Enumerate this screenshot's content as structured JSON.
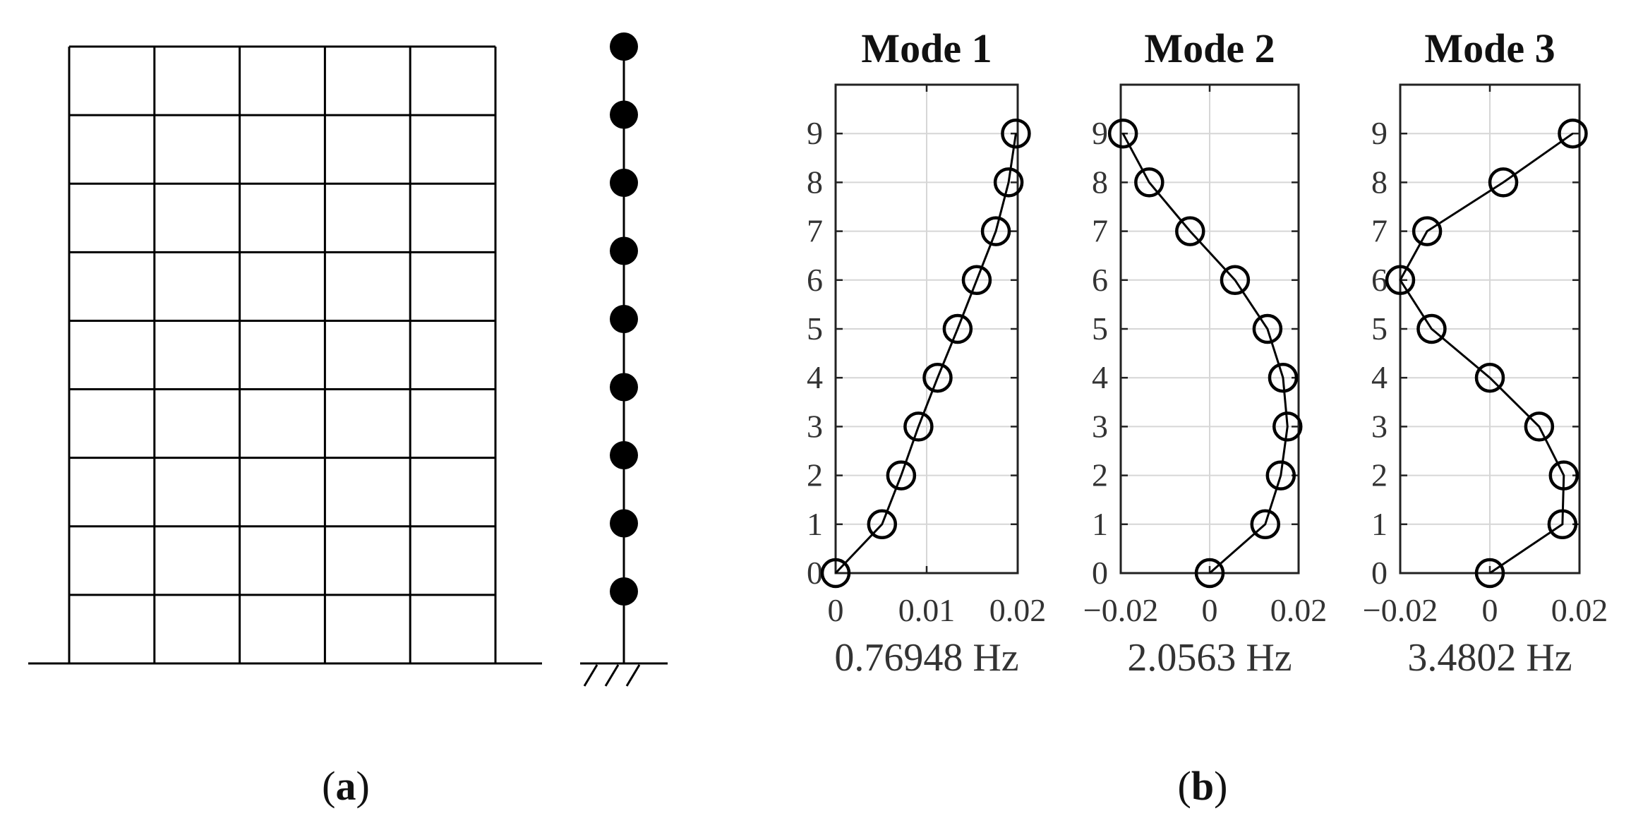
{
  "captions": {
    "a": "a",
    "b": "b"
  },
  "chart_data": [
    {
      "type": "line",
      "title": "Mode 1",
      "xlabel": "0.76948 Hz",
      "ylabel": "",
      "xlim": [
        0,
        0.02
      ],
      "ylim": [
        0,
        10
      ],
      "xticks": [
        0,
        0.01,
        0.02
      ],
      "xtick_labels": [
        "0",
        "0.01",
        "0.02"
      ],
      "yticks": [
        0,
        1,
        2,
        3,
        4,
        5,
        6,
        7,
        8,
        9
      ],
      "grid": true,
      "series": [
        {
          "x": [
            0,
            0.0051,
            0.0072,
            0.0091,
            0.0112,
            0.0134,
            0.0155,
            0.0176,
            0.019,
            0.0198
          ],
          "y": [
            0,
            1,
            2,
            3,
            4,
            5,
            6,
            7,
            8,
            9
          ]
        }
      ]
    },
    {
      "type": "line",
      "title": "Mode 2",
      "xlabel": "2.0563 Hz",
      "ylabel": "",
      "xlim": [
        -0.02,
        0.02
      ],
      "ylim": [
        0,
        10
      ],
      "xticks": [
        -0.02,
        0,
        0.02
      ],
      "xtick_labels": [
        "−0.02",
        "0",
        "0.02"
      ],
      "yticks": [
        0,
        1,
        2,
        3,
        4,
        5,
        6,
        7,
        8,
        9
      ],
      "grid": true,
      "series": [
        {
          "x": [
            0,
            0.0125,
            0.016,
            0.0175,
            0.0165,
            0.013,
            0.0057,
            -0.0044,
            -0.0136,
            -0.0195
          ],
          "y": [
            0,
            1,
            2,
            3,
            4,
            5,
            6,
            7,
            8,
            9
          ]
        }
      ]
    },
    {
      "type": "line",
      "title": "Mode 3",
      "xlabel": "3.4802 Hz",
      "ylabel": "",
      "xlim": [
        -0.02,
        0.02
      ],
      "ylim": [
        0,
        10
      ],
      "xticks": [
        -0.02,
        0,
        0.02
      ],
      "xtick_labels": [
        "−0.02",
        "0",
        "0.02"
      ],
      "yticks": [
        0,
        1,
        2,
        3,
        4,
        5,
        6,
        7,
        8,
        9
      ],
      "grid": true,
      "series": [
        {
          "x": [
            0,
            0.0162,
            0.0165,
            0.011,
            0,
            -0.013,
            -0.02,
            -0.014,
            0.003,
            0.0185
          ],
          "y": [
            0,
            1,
            2,
            3,
            4,
            5,
            6,
            7,
            8,
            9
          ]
        }
      ]
    }
  ],
  "frame_model": {
    "bays": 5,
    "stories": 9
  },
  "stick_model": {
    "masses": 9
  }
}
